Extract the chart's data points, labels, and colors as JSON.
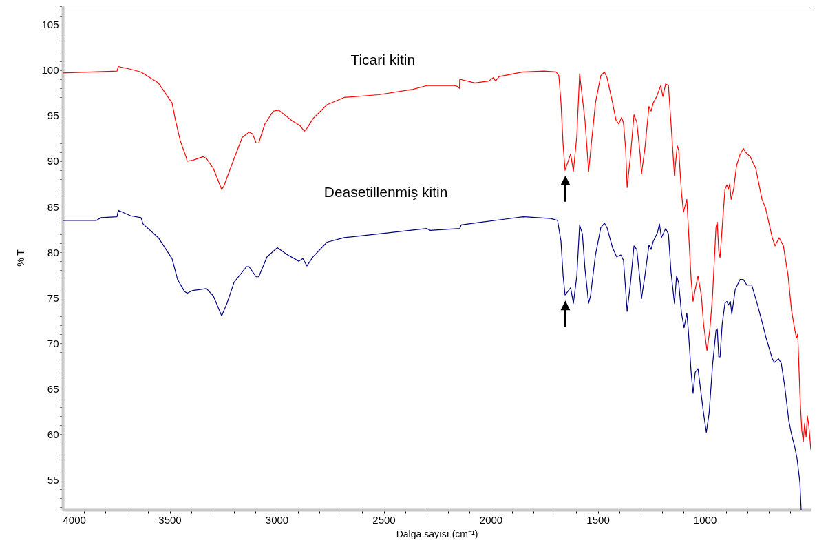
{
  "chart_data": {
    "type": "line",
    "xlabel": "Dalga sayısı (cm⁻¹)",
    "ylabel": "% T",
    "grid": false,
    "xlim": [
      4000,
      505
    ],
    "ylim": [
      51.7,
      107.1
    ],
    "xticks": [
      4000,
      {
        "value": 3900,
        "label": null
      },
      {
        "value": 3800,
        "label": null
      },
      {
        "value": 3700,
        "label": null
      },
      {
        "value": 3600,
        "label": null
      },
      3500,
      {
        "value": 3400,
        "label": null
      },
      {
        "value": 3300,
        "label": null
      },
      {
        "value": 3200,
        "label": null
      },
      {
        "value": 3100,
        "label": null
      },
      3000,
      {
        "value": 2900,
        "label": null
      },
      {
        "value": 2800,
        "label": null
      },
      {
        "value": 2700,
        "label": null
      },
      {
        "value": 2600,
        "label": null
      },
      2500,
      {
        "value": 2400,
        "label": null
      },
      {
        "value": 2300,
        "label": null
      },
      {
        "value": 2200,
        "label": null
      },
      {
        "value": 2100,
        "label": null
      },
      2000,
      {
        "value": 1900,
        "label": null
      },
      {
        "value": 1800,
        "label": null
      },
      {
        "value": 1700,
        "label": null
      },
      {
        "value": 1600,
        "label": null
      },
      1500,
      {
        "value": 1400,
        "label": null
      },
      {
        "value": 1300,
        "label": null
      },
      {
        "value": 1200,
        "label": null
      },
      {
        "value": 1100,
        "label": null
      },
      1000,
      {
        "value": 900,
        "label": null
      },
      {
        "value": 800,
        "label": null
      },
      {
        "value": 700,
        "label": null
      },
      {
        "value": 600,
        "label": null
      }
    ],
    "yticks": [
      {
        "value": 52,
        "label": null
      },
      {
        "value": 53,
        "label": null
      },
      {
        "value": 54,
        "label": null
      },
      55,
      {
        "value": 56,
        "label": null
      },
      {
        "value": 57,
        "label": null
      },
      {
        "value": 58,
        "label": null
      },
      {
        "value": 59,
        "label": null
      },
      60,
      {
        "value": 61,
        "label": null
      },
      {
        "value": 62,
        "label": null
      },
      {
        "value": 63,
        "label": null
      },
      {
        "value": 64,
        "label": null
      },
      65,
      {
        "value": 66,
        "label": null
      },
      {
        "value": 67,
        "label": null
      },
      {
        "value": 68,
        "label": null
      },
      {
        "value": 69,
        "label": null
      },
      70,
      {
        "value": 71,
        "label": null
      },
      {
        "value": 72,
        "label": null
      },
      {
        "value": 73,
        "label": null
      },
      {
        "value": 74,
        "label": null
      },
      75,
      {
        "value": 76,
        "label": null
      },
      {
        "value": 77,
        "label": null
      },
      {
        "value": 78,
        "label": null
      },
      {
        "value": 79,
        "label": null
      },
      80,
      {
        "value": 81,
        "label": null
      },
      {
        "value": 82,
        "label": null
      },
      {
        "value": 83,
        "label": null
      },
      {
        "value": 84,
        "label": null
      },
      85,
      {
        "value": 86,
        "label": null
      },
      {
        "value": 87,
        "label": null
      },
      {
        "value": 88,
        "label": null
      },
      {
        "value": 89,
        "label": null
      },
      90,
      {
        "value": 91,
        "label": null
      },
      {
        "value": 92,
        "label": null
      },
      {
        "value": 93,
        "label": null
      },
      {
        "value": 94,
        "label": null
      },
      95,
      {
        "value": 96,
        "label": null
      },
      {
        "value": 97,
        "label": null
      },
      {
        "value": 98,
        "label": null
      },
      {
        "value": 99,
        "label": null
      },
      100,
      {
        "value": 101,
        "label": null
      },
      {
        "value": 102,
        "label": null
      },
      {
        "value": 103,
        "label": null
      },
      {
        "value": 104,
        "label": null
      },
      105,
      {
        "value": 106,
        "label": null
      },
      {
        "value": 107,
        "label": null
      }
    ],
    "series": [
      {
        "name": "Ticari kitin",
        "color": "#ff0000",
        "x": [
          4000,
          3746,
          3740,
          3682,
          3634,
          3553,
          3489,
          3473,
          3450,
          3424,
          3418,
          3392,
          3344,
          3328,
          3296,
          3257,
          3248,
          3199,
          3161,
          3129,
          3113,
          3096,
          3084,
          3055,
          3016,
          2990,
          2958,
          2926,
          2910,
          2891,
          2871,
          2859,
          2830,
          2765,
          2685,
          2524,
          2363,
          2299,
          2235,
          2170,
          2154,
          2146,
          2145,
          2074,
          2010,
          1987,
          1978,
          1961,
          1849,
          1752,
          1695,
          1682,
          1672,
          1662,
          1653,
          1627,
          1614,
          1598,
          1585,
          1560,
          1543,
          1511,
          1486,
          1469,
          1457,
          1431,
          1415,
          1402,
          1389,
          1380,
          1370,
          1363,
          1347,
          1331,
          1318,
          1302,
          1296,
          1280,
          1261,
          1251,
          1241,
          1225,
          1206,
          1196,
          1183,
          1170,
          1158,
          1142,
          1129,
          1122,
          1109,
          1100,
          1084,
          1077,
          1064,
          1055,
          1045,
          1032,
          1016,
          1006,
          990,
          977,
          964,
          948,
          942,
          935,
          929,
          919,
          906,
          897,
          890,
          884,
          877,
          865,
          852,
          836,
          820,
          810,
          788,
          762,
          733,
          717,
          685,
          672,
          653,
          633,
          611,
          595,
          579,
          572,
          566,
          563,
          556,
          553,
          547,
          540,
          534,
          527,
          521,
          514,
          508,
          505
        ],
        "values": [
          99.7,
          99.9,
          100.4,
          100.1,
          99.8,
          98.6,
          96.4,
          94.5,
          92.2,
          90.5,
          90.0,
          90.1,
          90.5,
          90.3,
          89.2,
          86.9,
          87.2,
          90.3,
          92.6,
          93.2,
          93.0,
          92.0,
          92.0,
          94.1,
          95.5,
          95.6,
          95.0,
          94.4,
          94.2,
          93.9,
          93.3,
          93.6,
          94.7,
          96.2,
          97.0,
          97.3,
          97.9,
          98.3,
          98.3,
          98.3,
          98.2,
          98.0,
          99.0,
          98.6,
          98.8,
          99.2,
          98.8,
          99.3,
          99.8,
          99.9,
          99.8,
          99.4,
          96.4,
          91.8,
          89.0,
          90.8,
          88.9,
          92.8,
          99.6,
          94.5,
          88.9,
          96.4,
          99.4,
          99.8,
          99.2,
          96.4,
          94.5,
          94.1,
          94.8,
          94.2,
          91.4,
          87.1,
          90.7,
          95.1,
          94.3,
          90.7,
          88.6,
          91.4,
          96.0,
          95.5,
          96.4,
          97.1,
          98.3,
          97.1,
          98.5,
          98.3,
          94.1,
          88.4,
          91.7,
          91.2,
          86.5,
          84.4,
          85.8,
          82.7,
          77.0,
          74.6,
          75.9,
          77.4,
          75.2,
          72.1,
          69.2,
          71.4,
          75.2,
          82.7,
          83.3,
          80.1,
          79.4,
          82.7,
          86.9,
          87.4,
          86.9,
          87.5,
          85.8,
          87.0,
          89.5,
          90.7,
          91.4,
          91.0,
          90.5,
          89.2,
          85.8,
          84.9,
          81.6,
          80.7,
          81.6,
          80.7,
          77.4,
          73.6,
          71.4,
          70.6,
          71.0,
          69.1,
          64.5,
          63.0,
          60.4,
          59.2,
          61.2,
          59.7,
          62.0,
          60.9,
          59.2,
          58.3
        ]
      },
      {
        "name": "Deasetillenmiş kitin",
        "color": "#000080",
        "x": [
          4000,
          3842,
          3820,
          3746,
          3740,
          3682,
          3634,
          3624,
          3553,
          3489,
          3463,
          3431,
          3418,
          3392,
          3328,
          3296,
          3257,
          3232,
          3199,
          3141,
          3129,
          3096,
          3084,
          3045,
          2997,
          2949,
          2910,
          2897,
          2878,
          2859,
          2830,
          2765,
          2685,
          2492,
          2299,
          2283,
          2145,
          2138,
          2042,
          1945,
          1849,
          1720,
          1688,
          1672,
          1662,
          1653,
          1627,
          1614,
          1598,
          1585,
          1572,
          1560,
          1543,
          1534,
          1511,
          1486,
          1469,
          1457,
          1431,
          1412,
          1392,
          1380,
          1370,
          1363,
          1347,
          1331,
          1318,
          1302,
          1296,
          1280,
          1261,
          1251,
          1241,
          1222,
          1212,
          1203,
          1183,
          1170,
          1158,
          1142,
          1132,
          1122,
          1109,
          1097,
          1084,
          1077,
          1064,
          1055,
          1045,
          1032,
          1023,
          1006,
          993,
          980,
          964,
          948,
          942,
          935,
          929,
          919,
          906,
          897,
          890,
          881,
          874,
          858,
          836,
          820,
          804,
          781,
          756,
          730,
          714,
          685,
          675,
          656,
          643,
          627,
          608,
          595,
          579,
          569,
          556,
          550
        ],
        "values": [
          83.5,
          83.5,
          83.8,
          83.9,
          84.6,
          84.0,
          83.8,
          83.1,
          81.6,
          79.3,
          77.0,
          75.7,
          75.5,
          75.8,
          76.0,
          75.2,
          73.0,
          74.4,
          76.7,
          78.4,
          78.4,
          77.3,
          77.3,
          79.5,
          80.5,
          79.7,
          79.2,
          79.0,
          79.3,
          78.5,
          79.5,
          81.1,
          81.6,
          82.1,
          82.6,
          82.4,
          82.6,
          83.0,
          83.3,
          83.6,
          83.9,
          83.7,
          83.5,
          81.2,
          77.4,
          75.3,
          76.1,
          74.4,
          77.4,
          83.0,
          82.0,
          78.2,
          74.4,
          75.2,
          79.7,
          82.7,
          83.2,
          82.7,
          80.5,
          79.5,
          79.7,
          79.1,
          75.9,
          73.5,
          76.7,
          80.7,
          80.3,
          76.7,
          74.9,
          77.4,
          80.8,
          80.3,
          81.2,
          82.1,
          83.1,
          81.6,
          82.6,
          82.0,
          77.8,
          74.4,
          77.4,
          76.6,
          73.3,
          71.7,
          73.3,
          71.4,
          66.8,
          64.5,
          66.8,
          67.2,
          65.5,
          62.3,
          60.2,
          62.3,
          67.6,
          71.4,
          71.6,
          68.5,
          68.5,
          72.1,
          74.4,
          74.6,
          74.2,
          74.6,
          73.2,
          75.9,
          77.0,
          77.0,
          76.4,
          76.4,
          74.4,
          72.1,
          70.6,
          68.3,
          67.9,
          68.3,
          67.8,
          65.3,
          61.5,
          60.0,
          58.5,
          57.3,
          54.7,
          51.7
        ]
      }
    ]
  }
}
